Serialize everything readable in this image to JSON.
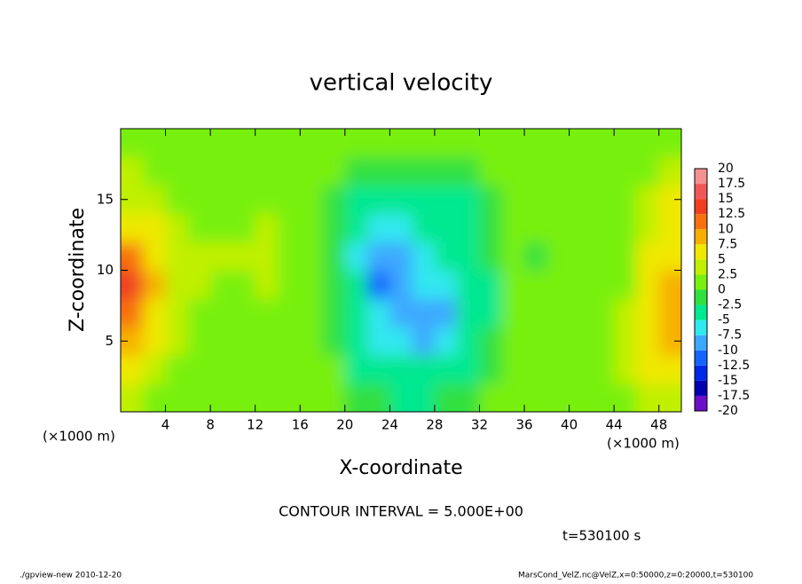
{
  "chart_data": {
    "type": "heatmap",
    "title": "vertical velocity",
    "xlabel": "X-coordinate",
    "ylabel": "Z-coordinate",
    "x_unit_left": "(×1000 m)",
    "x_unit_right": "(×1000 m)",
    "contour_interval": "CONTOUR INTERVAL = 5.000E+00",
    "time_label": "t=530100 s",
    "footer_left": "./gpview-new  2010-12-20",
    "footer_right": "MarsCond_VelZ.nc@VelZ,x=0:50000,z=0:20000,t=530100",
    "xlim": [
      0,
      50
    ],
    "ylim": [
      0,
      20
    ],
    "xticks": [
      4,
      8,
      12,
      16,
      20,
      24,
      28,
      32,
      36,
      40,
      44,
      48
    ],
    "yticks": [
      5,
      10,
      15
    ],
    "x": [
      1,
      3,
      5,
      7,
      9,
      11,
      13,
      15,
      17,
      19,
      21,
      23,
      25,
      27,
      29,
      31,
      33,
      35,
      37,
      39,
      41,
      43,
      45,
      47,
      49
    ],
    "z": [
      1,
      3,
      5,
      7,
      9,
      11,
      13,
      15,
      17,
      19
    ],
    "values": [
      [
        3,
        2,
        2,
        1,
        1,
        1,
        1,
        1,
        1,
        0,
        -1,
        -2,
        -3,
        -3,
        -2,
        -2,
        0,
        0,
        1,
        1,
        2,
        1,
        2,
        3,
        4
      ],
      [
        6,
        4,
        2,
        2,
        1,
        1,
        1,
        1,
        1,
        0,
        -3,
        -4,
        -5,
        -5,
        -4,
        -3,
        -1,
        0,
        1,
        1,
        2,
        2,
        3,
        5,
        6
      ],
      [
        9,
        6,
        3,
        2,
        2,
        2,
        2,
        1,
        1,
        -1,
        -4,
        -6,
        -7,
        -8,
        -6,
        -4,
        -2,
        0,
        1,
        1,
        2,
        2,
        3,
        6,
        8
      ],
      [
        11,
        7,
        4,
        2,
        2,
        2,
        2,
        1,
        1,
        -1,
        -5,
        -7,
        -8,
        -9,
        -8,
        -5,
        -3,
        0,
        1,
        1,
        2,
        2,
        3,
        5,
        9
      ],
      [
        13,
        8,
        4,
        3,
        2,
        2,
        3,
        2,
        1,
        -2,
        -5,
        -11,
        -9,
        -7,
        -6,
        -5,
        -3,
        0,
        0,
        1,
        1,
        1,
        2,
        5,
        8
      ],
      [
        11,
        7,
        4,
        3,
        3,
        3,
        4,
        2,
        1,
        -2,
        -6,
        -10,
        -8,
        -6,
        -5,
        -4,
        -2,
        0,
        -0.5,
        0,
        1,
        1,
        2,
        5,
        7
      ],
      [
        7,
        5,
        3,
        2,
        2,
        2,
        3,
        2,
        1,
        -2,
        -5,
        -7,
        -6,
        -5,
        -5,
        -4,
        -2,
        0,
        0,
        0,
        1,
        1,
        2,
        4,
        6
      ],
      [
        4,
        3,
        2,
        2,
        2,
        2,
        2,
        2,
        1,
        -1,
        -3,
        -4,
        -4,
        -4,
        -3,
        -3,
        -1,
        1,
        0.5,
        1,
        1,
        2,
        2,
        4,
        5
      ],
      [
        3,
        2,
        2,
        2,
        2,
        2,
        2,
        2,
        1,
        1,
        -1,
        -2,
        -2.5,
        -2,
        -1,
        -1,
        0,
        1,
        1,
        2,
        2,
        2,
        2,
        2,
        3
      ],
      [
        2,
        2,
        2,
        2,
        2,
        2,
        2,
        2,
        2,
        2,
        1,
        1,
        0.5,
        0.5,
        0.5,
        0.5,
        1,
        1,
        1,
        2,
        2,
        2,
        2,
        2,
        2
      ]
    ],
    "colorbar": {
      "levels": [
        -20,
        -17.5,
        -15,
        -12.5,
        -10,
        -7.5,
        -5,
        -2.5,
        0,
        2.5,
        5,
        7.5,
        10,
        12.5,
        15,
        17.5,
        20
      ],
      "colors": [
        "#6a10c8",
        "#0000b0",
        "#0028e8",
        "#1464ff",
        "#3ca8ff",
        "#30e8f0",
        "#00e890",
        "#30e040",
        "#78f010",
        "#c0f000",
        "#f0e800",
        "#f8b000",
        "#f87010",
        "#f04020",
        "#f05858",
        "#f49090"
      ]
    }
  }
}
